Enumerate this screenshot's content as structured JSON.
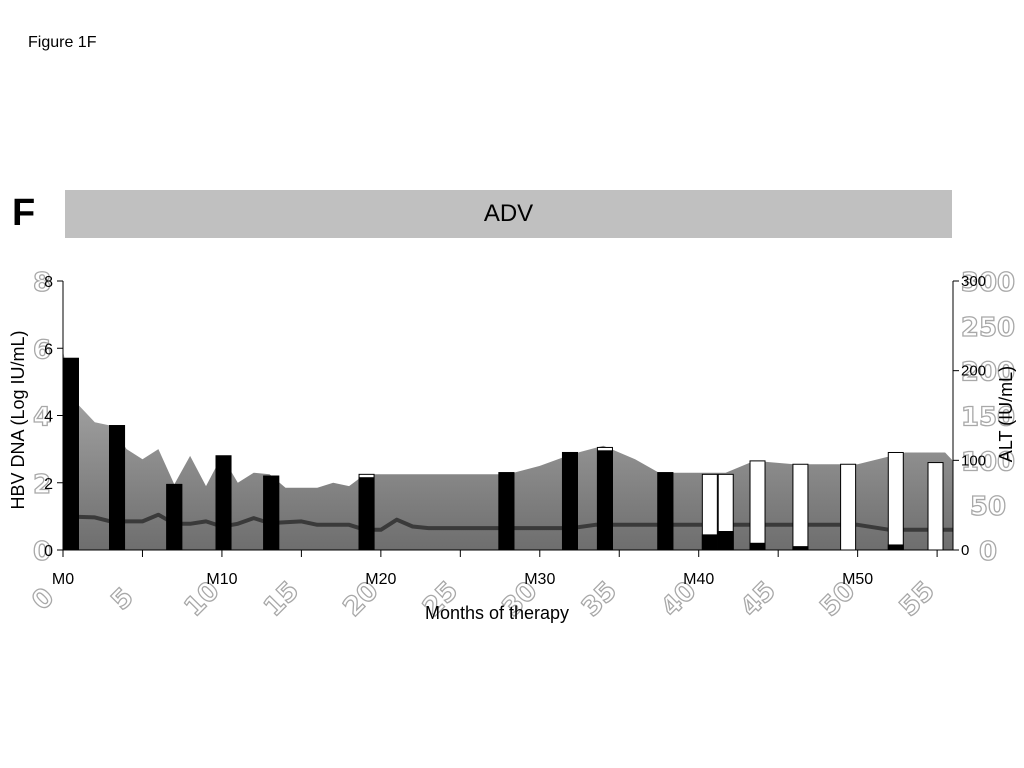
{
  "figure_caption": "Figure 1F",
  "panel_letter": "F",
  "regimen_band_label": "ADV",
  "chart_data": {
    "type": "bar",
    "xlabel": "Months of therapy",
    "ylabel_left": "HBV DNA (Log IU/mL)",
    "ylabel_right": "ALT (IU/mL)",
    "xlim": [
      0,
      56
    ],
    "ylim_left": [
      0,
      8
    ],
    "ylim_right": [
      0,
      300
    ],
    "x_ticks": [
      {
        "x": 0,
        "label": "M0"
      },
      {
        "x": 10,
        "label": "M10"
      },
      {
        "x": 20,
        "label": "M20"
      },
      {
        "x": 30,
        "label": "M30"
      },
      {
        "x": 40,
        "label": "M40"
      },
      {
        "x": 50,
        "label": "M50"
      }
    ],
    "x_minor_ticks": [
      5,
      15,
      25,
      35,
      45,
      55
    ],
    "y_left_ticks": [
      0,
      2,
      4,
      6,
      8
    ],
    "y_right_ticks": [
      0,
      100,
      200,
      300
    ],
    "ghost_x_labels": [
      "0",
      "5",
      "10",
      "15",
      "20",
      "25",
      "30",
      "35",
      "40",
      "45",
      "50",
      "55"
    ],
    "ghost_y_left_labels": [
      "0",
      "2",
      "4",
      "6",
      "8"
    ],
    "ghost_y_right_labels": [
      "0",
      "50",
      "100",
      "150",
      "200",
      "250",
      "300"
    ],
    "hbv_dna_bars": [
      {
        "month": 0.5,
        "total": 5.7,
        "filled": 5.7
      },
      {
        "month": 3.4,
        "total": 3.7,
        "filled": 3.7
      },
      {
        "month": 7.0,
        "total": 1.95,
        "filled": 1.95
      },
      {
        "month": 10.1,
        "total": 2.8,
        "filled": 2.8
      },
      {
        "month": 13.1,
        "total": 2.2,
        "filled": 2.2
      },
      {
        "month": 19.1,
        "total": 2.25,
        "filled": 2.15
      },
      {
        "month": 27.9,
        "total": 2.3,
        "filled": 2.3
      },
      {
        "month": 31.9,
        "total": 2.9,
        "filled": 2.9
      },
      {
        "month": 34.1,
        "total": 3.05,
        "filled": 2.95
      },
      {
        "month": 37.9,
        "total": 2.3,
        "filled": 2.3
      },
      {
        "month": 40.7,
        "total": 2.25,
        "filled": 0.45
      },
      {
        "month": 41.7,
        "total": 2.25,
        "filled": 0.55
      },
      {
        "month": 43.7,
        "total": 2.65,
        "filled": 0.2
      },
      {
        "month": 46.4,
        "total": 2.55,
        "filled": 0.1
      },
      {
        "month": 49.4,
        "total": 2.55,
        "filled": 0.0
      },
      {
        "month": 52.4,
        "total": 2.9,
        "filled": 0.15
      },
      {
        "month": 54.9,
        "total": 2.6,
        "filled": 0.0
      }
    ],
    "alt_area": [
      [
        0,
        5.9
      ],
      [
        0.8,
        4.4
      ],
      [
        2,
        3.8
      ],
      [
        3,
        3.7
      ],
      [
        4,
        3.0
      ],
      [
        5,
        2.7
      ],
      [
        6,
        3.0
      ],
      [
        7,
        1.95
      ],
      [
        8,
        2.8
      ],
      [
        9,
        1.9
      ],
      [
        10,
        2.8
      ],
      [
        11,
        2.0
      ],
      [
        12,
        2.3
      ],
      [
        13,
        2.25
      ],
      [
        14,
        1.85
      ],
      [
        16,
        1.85
      ],
      [
        17,
        2.0
      ],
      [
        18,
        1.9
      ],
      [
        19,
        2.25
      ],
      [
        20,
        2.25
      ],
      [
        28,
        2.25
      ],
      [
        30,
        2.5
      ],
      [
        32,
        2.85
      ],
      [
        34,
        3.1
      ],
      [
        36,
        2.7
      ],
      [
        37.5,
        2.3
      ],
      [
        41.7,
        2.3
      ],
      [
        43.5,
        2.65
      ],
      [
        46,
        2.55
      ],
      [
        48,
        2.55
      ],
      [
        50,
        2.55
      ],
      [
        53,
        2.9
      ],
      [
        55.5,
        2.9
      ],
      [
        56,
        2.65
      ]
    ],
    "trend_line": [
      [
        0,
        1.0
      ],
      [
        2,
        0.97
      ],
      [
        3,
        0.85
      ],
      [
        5,
        0.85
      ],
      [
        6,
        1.05
      ],
      [
        7,
        0.78
      ],
      [
        8,
        0.78
      ],
      [
        9,
        0.85
      ],
      [
        10,
        0.7
      ],
      [
        11,
        0.78
      ],
      [
        12,
        0.95
      ],
      [
        13,
        0.8
      ],
      [
        15,
        0.85
      ],
      [
        16,
        0.75
      ],
      [
        18,
        0.75
      ],
      [
        19,
        0.6
      ],
      [
        20,
        0.6
      ],
      [
        21,
        0.9
      ],
      [
        22,
        0.7
      ],
      [
        23,
        0.65
      ],
      [
        28,
        0.65
      ],
      [
        32,
        0.65
      ],
      [
        33.5,
        0.75
      ],
      [
        40,
        0.75
      ],
      [
        48,
        0.75
      ],
      [
        50,
        0.75
      ],
      [
        52,
        0.6
      ],
      [
        54,
        0.6
      ],
      [
        56,
        0.6
      ]
    ],
    "colors": {
      "area_top": "#b0b0b0",
      "area_bottom": "#6e6e6e",
      "bar_fill": "#000000",
      "bar_open": "#ffffff",
      "trend_line": "#3a3a3a",
      "band": "#c0c0c0"
    },
    "grid": false
  }
}
